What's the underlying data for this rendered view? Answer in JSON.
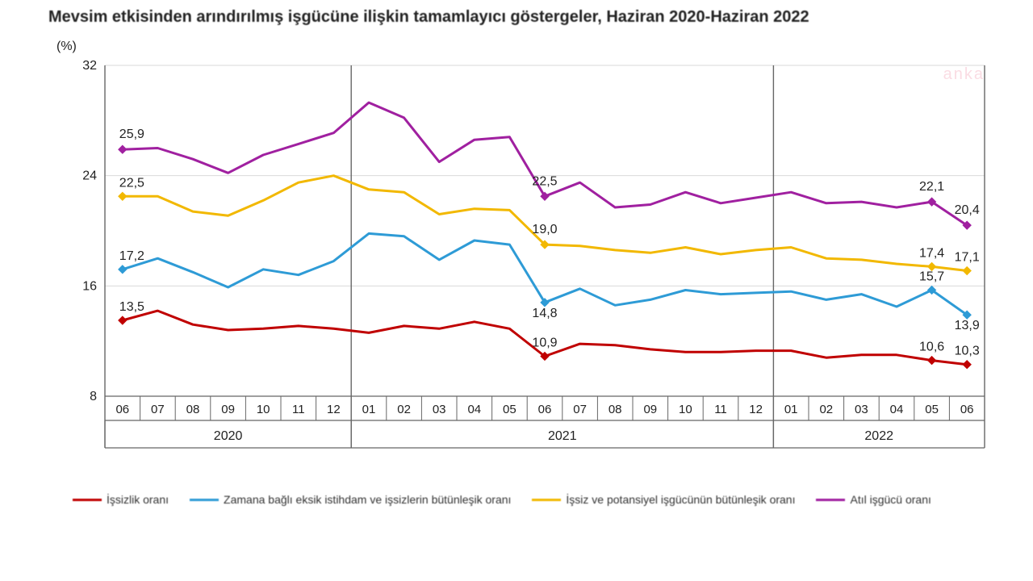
{
  "title": "Mevsim etkisinden arındırılmış işgücüne ilişkin tamamlayıcı göstergeler, Haziran 2020-Haziran 2022",
  "y_unit": "(%)",
  "watermark": "anka",
  "chart": {
    "type": "line",
    "ylim": [
      8,
      32
    ],
    "ytick_step": 8,
    "yticks": [
      8,
      16,
      24,
      32
    ],
    "grid_color": "#d9d9d9",
    "axis_color": "#666666",
    "background_color": "#ffffff",
    "line_width": 3,
    "marker_size": 5,
    "font_size_labels": 16,
    "font_size_ticks": 15,
    "months": [
      "06",
      "07",
      "08",
      "09",
      "10",
      "11",
      "12",
      "01",
      "02",
      "03",
      "04",
      "05",
      "06",
      "07",
      "08",
      "09",
      "10",
      "11",
      "12",
      "01",
      "02",
      "03",
      "04",
      "05",
      "06"
    ],
    "year_groups": [
      {
        "label": "2020",
        "start": 0,
        "end": 6
      },
      {
        "label": "2021",
        "start": 7,
        "end": 18
      },
      {
        "label": "2022",
        "start": 19,
        "end": 24
      }
    ],
    "series": [
      {
        "key": "issizlik",
        "label": "İşsizlik oranı",
        "color": "#c00000",
        "marker": "diamond",
        "values": [
          13.5,
          14.2,
          13.2,
          12.8,
          12.9,
          13.1,
          12.9,
          12.6,
          13.1,
          12.9,
          13.4,
          12.9,
          10.9,
          11.8,
          11.7,
          11.4,
          11.2,
          11.2,
          11.3,
          11.3,
          10.8,
          11.0,
          11.0,
          10.6,
          10.3
        ],
        "labels": [
          {
            "i": 0,
            "text": "13,5",
            "dy": -12
          },
          {
            "i": 12,
            "text": "10,9",
            "dy": -12
          },
          {
            "i": 23,
            "text": "10,6",
            "dy": -12
          },
          {
            "i": 24,
            "text": "10,3",
            "dy": -12
          }
        ]
      },
      {
        "key": "zamana",
        "label": "Zamana bağlı eksik istihdam ve işsizlerin bütünleşik oranı",
        "color": "#2e9bd6",
        "marker": "diamond",
        "values": [
          17.2,
          18.0,
          17.0,
          15.9,
          17.2,
          16.8,
          17.8,
          19.8,
          19.6,
          17.9,
          19.3,
          19.0,
          14.8,
          15.8,
          14.6,
          15.0,
          15.7,
          15.4,
          15.5,
          15.6,
          15.0,
          15.4,
          14.5,
          15.7,
          13.9
        ],
        "labels": [
          {
            "i": 0,
            "text": "17,2",
            "dy": -12
          },
          {
            "i": 12,
            "text": "14,8",
            "dy": 18
          },
          {
            "i": 23,
            "text": "15,7",
            "dy": -12
          },
          {
            "i": 24,
            "text": "13,9",
            "dy": 18
          }
        ]
      },
      {
        "key": "issiz_potansiyel",
        "label": "İşsiz ve potansiyel işgücünün bütünleşik oranı",
        "color": "#f2b800",
        "marker": "diamond",
        "values": [
          22.5,
          22.5,
          21.4,
          21.1,
          22.2,
          23.5,
          24.0,
          23.0,
          22.8,
          21.2,
          21.6,
          21.5,
          19.0,
          18.9,
          18.6,
          18.4,
          18.8,
          18.3,
          18.6,
          18.8,
          18.0,
          17.9,
          17.6,
          17.4,
          17.1
        ],
        "labels": [
          {
            "i": 0,
            "text": "22,5",
            "dy": -12
          },
          {
            "i": 12,
            "text": "19,0",
            "dy": -14
          },
          {
            "i": 23,
            "text": "17,4",
            "dy": -12
          },
          {
            "i": 24,
            "text": "17,1",
            "dy": -12
          }
        ]
      },
      {
        "key": "atil",
        "label": "Atıl işgücü oranı",
        "color": "#a020a0",
        "marker": "diamond",
        "values": [
          25.9,
          26.0,
          25.2,
          24.2,
          25.5,
          26.3,
          27.1,
          29.3,
          28.2,
          25.0,
          26.6,
          26.8,
          22.5,
          23.5,
          21.7,
          21.9,
          22.8,
          22.0,
          22.4,
          22.8,
          22.0,
          22.1,
          21.7,
          22.1,
          20.4
        ],
        "labels": [
          {
            "i": 0,
            "text": "25,9",
            "dy": -14
          },
          {
            "i": 12,
            "text": "22,5",
            "dy": -14
          },
          {
            "i": 23,
            "text": "22,1",
            "dy": -14
          },
          {
            "i": 24,
            "text": "20,4",
            "dy": -14
          }
        ]
      }
    ]
  },
  "legend_order": [
    "issizlik",
    "zamana",
    "issiz_potansiyel",
    "atil"
  ]
}
